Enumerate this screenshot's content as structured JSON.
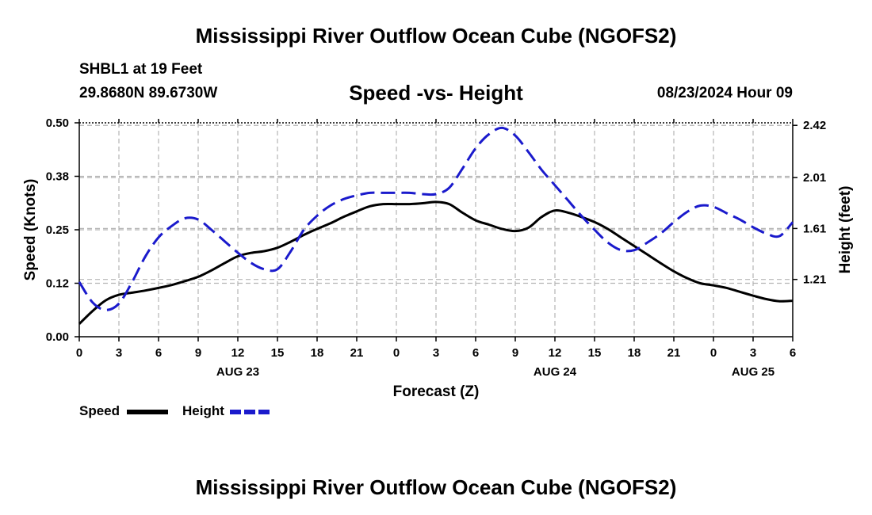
{
  "header": {
    "title": "Mississippi River Outflow Ocean Cube (NGOFS2)",
    "station": "SHBL1 at 19 Feet",
    "coords": "29.8680N  89.6730W",
    "subtitle": "Speed -vs- Height",
    "datetime": "08/23/2024 Hour 09"
  },
  "footer_title": "Mississippi River Outflow Ocean Cube (NGOFS2)",
  "legend": {
    "speed_label": "Speed",
    "height_label": "Height"
  },
  "colors": {
    "speed": "#000000",
    "height": "#1a1acc",
    "grid": "#b4b4b4"
  },
  "chart_data": {
    "type": "line",
    "title": "Speed -vs- Height",
    "xlabel": "Forecast (Z)",
    "ylabel": "Speed (Knots)",
    "y2label": "Height (feet)",
    "xlim": [
      0,
      54
    ],
    "ylim": [
      0,
      0.5
    ],
    "y2lim": [
      0.76,
      2.44
    ],
    "x_ticks": [
      0,
      3,
      6,
      9,
      12,
      15,
      18,
      21,
      24,
      27,
      30,
      33,
      36,
      39,
      42,
      45,
      48,
      51,
      54
    ],
    "x_tick_labels": [
      "0",
      "3",
      "6",
      "9",
      "12",
      "15",
      "18",
      "21",
      "0",
      "3",
      "6",
      "9",
      "12",
      "15",
      "18",
      "21",
      "0",
      "3",
      "6"
    ],
    "date_labels": [
      {
        "x": 12,
        "label": "AUG 23"
      },
      {
        "x": 36,
        "label": "AUG 24"
      },
      {
        "x": 51,
        "label": "AUG 25"
      }
    ],
    "y_ticks": [
      0.0,
      0.125,
      0.25,
      0.375,
      0.5
    ],
    "y_tick_labels": [
      "0.00",
      "0.12",
      "0.25",
      "0.38",
      "0.50"
    ],
    "y2_ticks": [
      1.21,
      1.61,
      2.01,
      2.42
    ],
    "y2_tick_labels": [
      "1.21",
      "1.61",
      "2.01",
      "2.42"
    ],
    "series": [
      {
        "name": "Speed",
        "axis": "left",
        "style": "solid",
        "x": [
          0,
          1,
          2,
          3,
          4,
          5,
          6,
          7,
          8,
          9,
          10,
          11,
          12,
          13,
          14,
          15,
          16,
          17,
          18,
          19,
          20,
          21,
          22,
          23,
          24,
          25,
          26,
          27,
          28,
          29,
          30,
          31,
          32,
          33,
          34,
          35,
          36,
          37,
          38,
          39,
          40,
          41,
          42,
          43,
          44,
          45,
          46,
          47,
          48,
          49,
          50,
          51,
          52,
          53,
          54
        ],
        "values": [
          0.03,
          0.06,
          0.085,
          0.098,
          0.103,
          0.108,
          0.114,
          0.121,
          0.13,
          0.14,
          0.155,
          0.172,
          0.188,
          0.196,
          0.2,
          0.208,
          0.222,
          0.238,
          0.252,
          0.265,
          0.28,
          0.293,
          0.305,
          0.31,
          0.31,
          0.31,
          0.312,
          0.315,
          0.31,
          0.29,
          0.272,
          0.262,
          0.252,
          0.247,
          0.255,
          0.28,
          0.295,
          0.29,
          0.28,
          0.268,
          0.252,
          0.232,
          0.212,
          0.192,
          0.172,
          0.153,
          0.137,
          0.125,
          0.12,
          0.114,
          0.105,
          0.096,
          0.088,
          0.083,
          0.084
        ]
      },
      {
        "name": "Height",
        "axis": "right",
        "style": "dashed",
        "x": [
          0,
          1,
          2,
          3,
          4,
          5,
          6,
          7,
          8,
          9,
          10,
          11,
          12,
          13,
          14,
          15,
          16,
          17,
          18,
          19,
          20,
          21,
          22,
          23,
          24,
          25,
          26,
          27,
          28,
          29,
          30,
          31,
          32,
          33,
          34,
          35,
          36,
          37,
          38,
          39,
          40,
          41,
          42,
          43,
          44,
          45,
          46,
          47,
          48,
          49,
          50,
          51,
          52,
          53,
          54
        ],
        "values": [
          1.19,
          1.03,
          0.97,
          1.02,
          1.19,
          1.39,
          1.54,
          1.63,
          1.69,
          1.68,
          1.6,
          1.51,
          1.42,
          1.34,
          1.29,
          1.29,
          1.43,
          1.6,
          1.71,
          1.79,
          1.84,
          1.87,
          1.89,
          1.89,
          1.89,
          1.89,
          1.88,
          1.88,
          1.93,
          2.08,
          2.24,
          2.35,
          2.4,
          2.34,
          2.21,
          2.07,
          1.95,
          1.83,
          1.71,
          1.6,
          1.5,
          1.44,
          1.44,
          1.5,
          1.57,
          1.66,
          1.74,
          1.79,
          1.78,
          1.73,
          1.68,
          1.62,
          1.57,
          1.55,
          1.66
        ]
      }
    ]
  }
}
